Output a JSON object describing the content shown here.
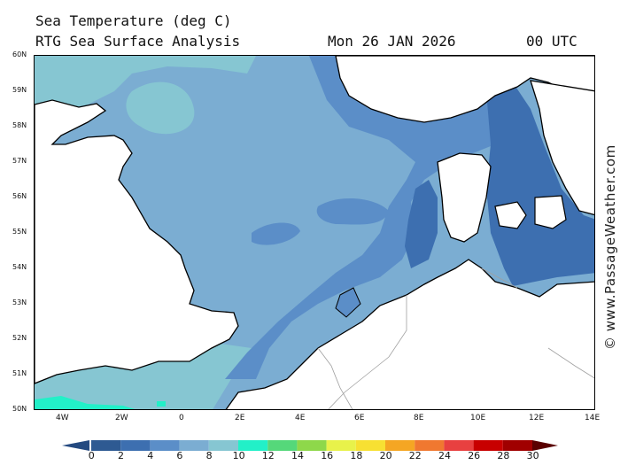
{
  "title": {
    "line1": "Sea Temperature (deg C)",
    "line2": "RTG Sea Surface Analysis",
    "date": "Mon 26 JAN 2026",
    "time": "00 UTC"
  },
  "watermark": "© www.PassageWeather.com",
  "axes": {
    "lat_labels": [
      "60N",
      "59N",
      "58N",
      "57N",
      "56N",
      "55N",
      "54N",
      "53N",
      "52N",
      "51N",
      "50N"
    ],
    "lon_labels": [
      "4W",
      "2W",
      "0",
      "2E",
      "4E",
      "6E",
      "8E",
      "10E",
      "12E",
      "14E"
    ]
  },
  "colorbar": {
    "labels": [
      "0",
      "2",
      "4",
      "6",
      "8",
      "10",
      "12",
      "14",
      "16",
      "18",
      "20",
      "22",
      "24",
      "26",
      "28",
      "30"
    ],
    "colors": [
      "#20406f",
      "#2e5a92",
      "#3d6fb0",
      "#5b8ec8",
      "#7badd2",
      "#86c6d2",
      "#22f0c8",
      "#55d87a",
      "#8ed84a",
      "#e8f24a",
      "#f7e032",
      "#f5a623",
      "#f07830",
      "#e84040",
      "#c80000",
      "#a00000",
      "#800000",
      "#5a0000"
    ]
  },
  "legend_colors": {
    "sea_2_4": "#3d6fb0",
    "sea_4_6": "#5b8ec8",
    "sea_6_8": "#7badd2",
    "sea_8_10": "#86c6d2",
    "sea_10_12": "#22f0c8",
    "land": "#ffffff",
    "coast": "#000000",
    "border": "#a0a0a0"
  }
}
